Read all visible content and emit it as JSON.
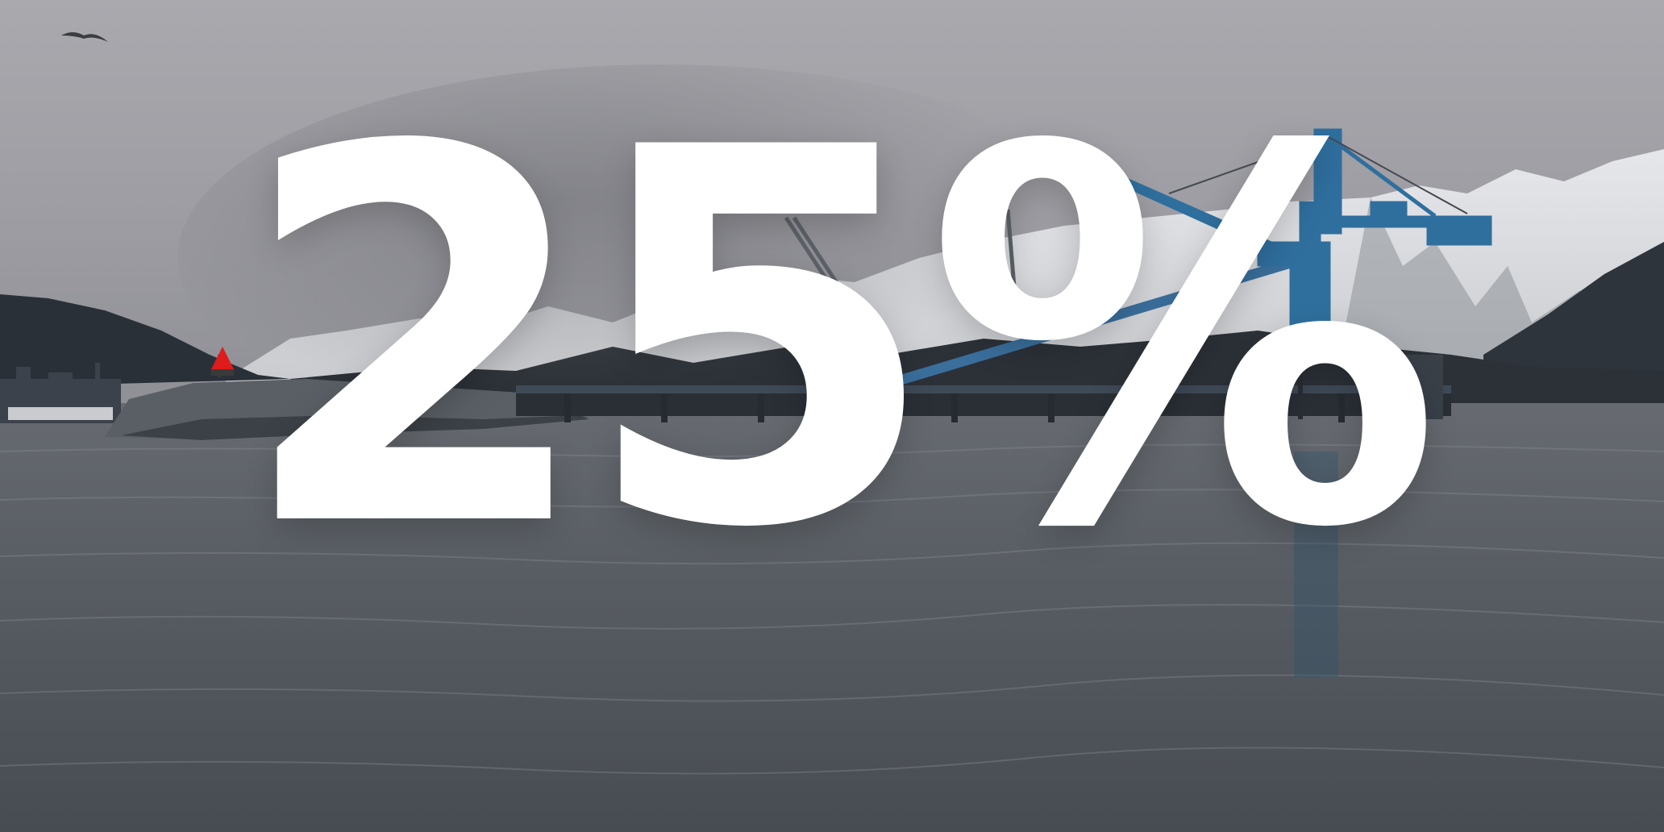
{
  "image": {
    "overlay_text": "25%",
    "text_color": "#ffffff",
    "sky_color": "#a6a6ab",
    "water_color": "#4d5258",
    "crane_color": "#2f6f9e",
    "beacon_color": "#e01b1b"
  }
}
